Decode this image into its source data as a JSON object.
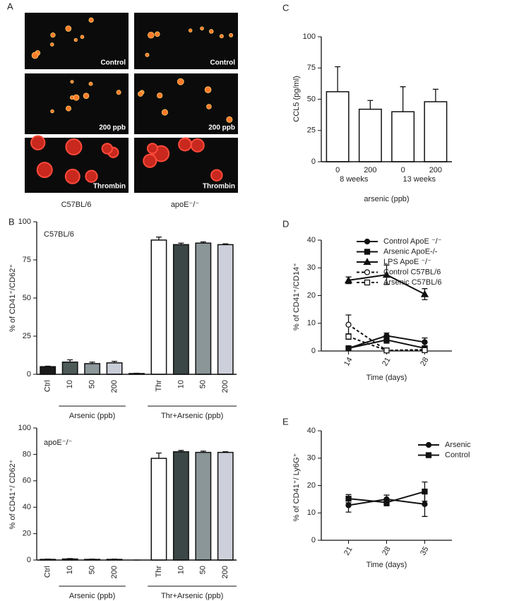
{
  "panel_a": {
    "panel": "A",
    "images": [
      "Control",
      "Control",
      "200 ppb",
      "200 ppb",
      "Thrombin",
      "Thrombin"
    ],
    "strains": [
      "C57BL/6",
      "apoE⁻/⁻"
    ]
  },
  "chart_data": [
    {
      "type": "bar",
      "panel": "B",
      "label": "C57BL/6",
      "ylabel": "% of CD41⁺/CD62⁺",
      "categories": [
        "Ctrl",
        "10",
        "50",
        "200",
        null,
        "Thr",
        "10",
        "50",
        "200"
      ],
      "values": [
        5,
        8,
        7,
        7.5,
        0.5,
        88,
        85,
        86,
        85
      ],
      "errors": [
        0.3,
        1.5,
        1,
        1,
        0.2,
        2,
        1,
        0.8,
        0.5
      ],
      "colors": [
        "#1a1a1a",
        "#4d5a58",
        "#8c9899",
        "#c9cdd8",
        "#1a1a1a",
        "#ffffff",
        "#3b4746",
        "#8a9697",
        "#cdd0da"
      ],
      "groups": [
        "Arsenic (ppb)",
        "Thr+Arsenic (ppb)"
      ],
      "ylim": [
        0,
        100
      ],
      "yticks": [
        0,
        25,
        50,
        75,
        100
      ]
    },
    {
      "type": "bar",
      "label": "apoE⁻/⁻",
      "ylabel": "% of CD41⁺/ CD62⁺",
      "categories": [
        "Ctrl",
        "10",
        "50",
        "200",
        null,
        "Thr",
        "10",
        "50",
        "200"
      ],
      "values": [
        0.5,
        0.8,
        0.5,
        0.5,
        0,
        77,
        82,
        81.5,
        81.5
      ],
      "errors": [
        0.2,
        0.3,
        0.2,
        0.2,
        0,
        4,
        1,
        1,
        0.5
      ],
      "colors": [
        "#1a1a1a",
        "#4d5a58",
        "#8c9899",
        "#c9cdd8",
        "#1a1a1a",
        "#ffffff",
        "#3b4746",
        "#8a9697",
        "#cdd0da"
      ],
      "groups": [
        "Arsenic (ppb)",
        "Thr+Arsenic (ppb)"
      ],
      "ylim": [
        0,
        100
      ],
      "yticks": [
        0,
        20,
        40,
        60,
        80,
        100
      ]
    },
    {
      "type": "bar",
      "panel": "C",
      "ylabel": "CCL5 (pg/ml)",
      "xlabel": "arsenic (ppb)",
      "categories": [
        "0",
        "200",
        "0",
        "200"
      ],
      "values": [
        56,
        42,
        40,
        48
      ],
      "errors": [
        20,
        7,
        20,
        10
      ],
      "colors": [
        "#ffffff",
        "#ffffff",
        "#ffffff",
        "#ffffff"
      ],
      "groups": [
        "8 weeks",
        "13 weeks"
      ],
      "ylim": [
        0,
        100
      ],
      "yticks": [
        0,
        25,
        50,
        75,
        100
      ]
    },
    {
      "type": "line",
      "panel": "D",
      "ylabel": "% of CD41⁺/CD14⁺",
      "xlabel": "Time (days)",
      "x": [
        14,
        21,
        28
      ],
      "xlim": [
        9,
        33
      ],
      "xticks": [
        14,
        21,
        28
      ],
      "ylim": [
        0,
        40
      ],
      "yticks": [
        0,
        10,
        20,
        30,
        40
      ],
      "legend": "upper right",
      "series": [
        {
          "name": "Control ApoE ⁻/⁻",
          "color": "#111111",
          "marker": "circle",
          "linestyle": "solid",
          "values": [
            1,
            5.5,
            3.2
          ],
          "errors": [
            0.3,
            1,
            1.5
          ]
        },
        {
          "name": "Arsenic ApoE-/-",
          "color": "#111111",
          "marker": "square",
          "linestyle": "solid",
          "values": [
            1,
            4,
            1
          ],
          "errors": [
            0.3,
            1.2,
            0.5
          ]
        },
        {
          "name": "LPS ApoE ⁻/⁻",
          "color": "#111111",
          "marker": "triangle",
          "linestyle": "solid",
          "values": [
            25.5,
            27.5,
            20.5
          ],
          "errors": [
            1.2,
            3.5,
            2
          ]
        },
        {
          "name": "Control C57BL/6",
          "color": "#111111",
          "marker": "open-circle",
          "linestyle": "dashed",
          "values": [
            9.5,
            0.2,
            0.5
          ],
          "errors": [
            3.5,
            0.2,
            0.3
          ]
        },
        {
          "name": "Arsenic C57BL/6",
          "color": "#111111",
          "marker": "open-square",
          "linestyle": "dashed",
          "values": [
            5.2,
            0.2,
            0.3
          ],
          "errors": [
            1,
            0.2,
            0.2
          ]
        }
      ]
    },
    {
      "type": "line",
      "panel": "E",
      "ylabel": "% of CD41⁺/ Ly6G⁺",
      "xlabel": "Time (days)",
      "x": [
        21,
        28,
        35
      ],
      "xlim": [
        16,
        40
      ],
      "xticks": [
        21,
        28,
        35
      ],
      "ylim": [
        0,
        40
      ],
      "yticks": [
        0,
        10,
        20,
        30,
        40
      ],
      "legend": "upper right",
      "series": [
        {
          "name": "Arsenic",
          "color": "#111111",
          "marker": "circle",
          "linestyle": "solid",
          "values": [
            12.8,
            15,
            13.2
          ],
          "errors": [
            2.5,
            1.5,
            4.5
          ]
        },
        {
          "name": "Control",
          "color": "#111111",
          "marker": "square",
          "linestyle": "solid",
          "values": [
            15.2,
            13.8,
            17.8
          ],
          "errors": [
            1.5,
            1.2,
            3.5
          ]
        }
      ]
    }
  ]
}
